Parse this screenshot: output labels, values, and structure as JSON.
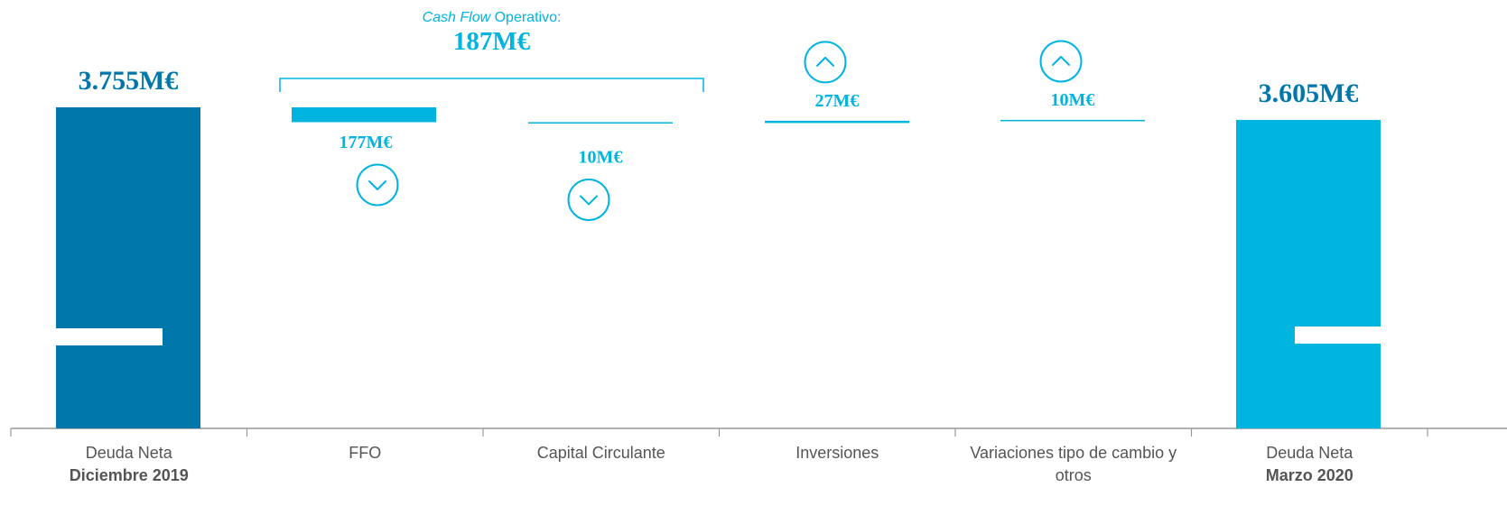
{
  "chart_data": {
    "type": "waterfall",
    "unit": "M€",
    "categories": [
      {
        "line1": "Deuda Neta",
        "line2": "Diciembre 2019"
      },
      {
        "line1": "FFO",
        "line2": ""
      },
      {
        "line1": "Capital Circulante",
        "line2": ""
      },
      {
        "line1": "Inversiones",
        "line2": ""
      },
      {
        "line1": "Variaciones tipo de cambio y",
        "line2": "otros"
      },
      {
        "line1": "Deuda Neta",
        "line2": "Marzo 2020"
      }
    ],
    "values": [
      3755,
      -177,
      -10,
      27,
      10,
      3605
    ],
    "kinds": [
      "total",
      "decrease",
      "decrease",
      "increase",
      "increase",
      "total"
    ],
    "value_labels": [
      "3.755M€",
      "177M€",
      "10M€",
      "27M€",
      "10M€",
      "3.605M€"
    ],
    "axis_break": true,
    "bracket": {
      "spans": [
        1,
        2
      ],
      "label_italic": "Cash Flow",
      "label_rest": "Operativo:",
      "value_label": "187M€"
    },
    "colors": {
      "total_start": "#0077aa",
      "total_end": "#00b4e0",
      "change": "#00b4e0",
      "axis": "#999999",
      "label_dark": "#0077aa",
      "label_light": "#00b4e0",
      "category_text": "#555555"
    },
    "icons": [
      "",
      "chevron-down-circle-icon",
      "chevron-down-circle-icon",
      "chevron-up-circle-icon",
      "chevron-up-circle-icon",
      ""
    ]
  }
}
